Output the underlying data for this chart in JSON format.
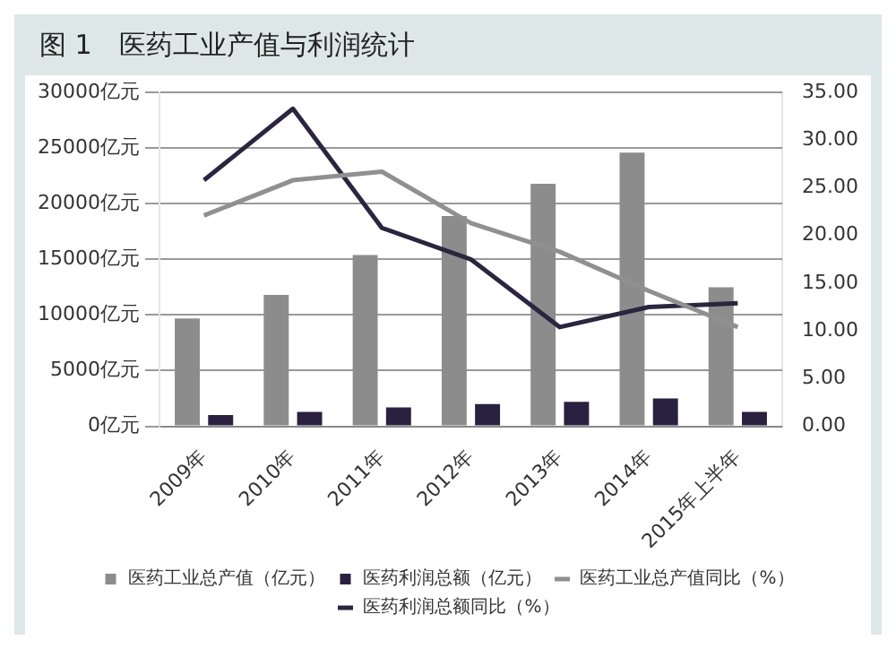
{
  "chart_data": {
    "type": "bar",
    "title": "图 1　医药工业产值与利润统计",
    "categories": [
      "2009年",
      "2010年",
      "2011年",
      "2012年",
      "2013年",
      "2014年",
      "2015年上半年"
    ],
    "series": [
      {
        "name": "医药工业总产值（亿元）",
        "color": "#8c8c8c",
        "values": [
          9700,
          11800,
          15400,
          18900,
          21800,
          24600,
          12500
        ]
      },
      {
        "name": "医药利润总额（亿元）",
        "color": "#2a2140",
        "values": [
          1000,
          1300,
          1700,
          2000,
          2200,
          2500,
          1300
        ]
      },
      {
        "name": "医药工业总产值同比（%）",
        "type": "line",
        "axis": "y2",
        "color": "#909090",
        "values": [
          22.1,
          25.8,
          26.7,
          21.3,
          18.3,
          14.2,
          10.4
        ]
      },
      {
        "name": "医药利润总额同比（%）",
        "type": "line",
        "axis": "y2",
        "color": "#2b2540",
        "values": [
          25.8,
          33.3,
          20.8,
          17.5,
          10.4,
          12.5,
          12.9
        ]
      }
    ],
    "ylim": [
      0,
      30000
    ],
    "yticks": [
      {
        "value": 0,
        "label": "0亿元"
      },
      {
        "value": 5000,
        "label": "5000亿元"
      },
      {
        "value": 10000,
        "label": "10000亿元"
      },
      {
        "value": 15000,
        "label": "15000亿元"
      },
      {
        "value": 20000,
        "label": "20000亿元"
      },
      {
        "value": 25000,
        "label": "25000亿元"
      },
      {
        "value": 30000,
        "label": "30000亿元"
      }
    ],
    "y2lim": [
      0,
      35
    ],
    "y2ticks": [
      {
        "value": 0,
        "label": "0.00"
      },
      {
        "value": 5,
        "label": "5.00"
      },
      {
        "value": 10,
        "label": "10.00"
      },
      {
        "value": 15,
        "label": "15.00"
      },
      {
        "value": 20,
        "label": "20.00"
      },
      {
        "value": 25,
        "label": "25.00"
      },
      {
        "value": 30,
        "label": "30.00"
      },
      {
        "value": 35,
        "label": "35.00"
      }
    ],
    "grid": "y",
    "legend": "bottom",
    "marker": "none",
    "line_style": "solid"
  }
}
